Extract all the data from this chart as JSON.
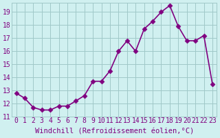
{
  "x": [
    0,
    1,
    2,
    3,
    4,
    5,
    6,
    7,
    8,
    9,
    10,
    11,
    12,
    13,
    14,
    15,
    16,
    17,
    18,
    19,
    20,
    21,
    22,
    23
  ],
  "y": [
    12.8,
    12.4,
    11.7,
    11.5,
    11.5,
    11.8,
    11.8,
    12.2,
    12.6,
    13.7,
    13.7,
    14.5,
    16.0,
    16.8,
    16.0,
    17.7,
    18.3,
    19.0,
    19.5,
    17.9,
    16.8,
    16.8,
    17.2,
    13.5
  ],
  "line_color": "#800080",
  "marker_color": "#800080",
  "bg_color": "#d0f0f0",
  "grid_color": "#a0c8c8",
  "xlabel": "Windchill (Refroidissement éolien,°C)",
  "ylabel_ticks": [
    11,
    12,
    13,
    14,
    15,
    16,
    17,
    18,
    19
  ],
  "ylim": [
    11,
    19.7
  ],
  "xlim": [
    -0.5,
    23.5
  ],
  "xtick_labels": [
    "0",
    "1",
    "2",
    "3",
    "4",
    "5",
    "6",
    "7",
    "8",
    "9",
    "10",
    "11",
    "12",
    "13",
    "14",
    "15",
    "16",
    "17",
    "18",
    "19",
    "20",
    "21",
    "22",
    "23"
  ],
  "line_width": 1.2,
  "marker_size": 3.5,
  "xlabel_fontsize": 7.5,
  "tick_fontsize": 7
}
